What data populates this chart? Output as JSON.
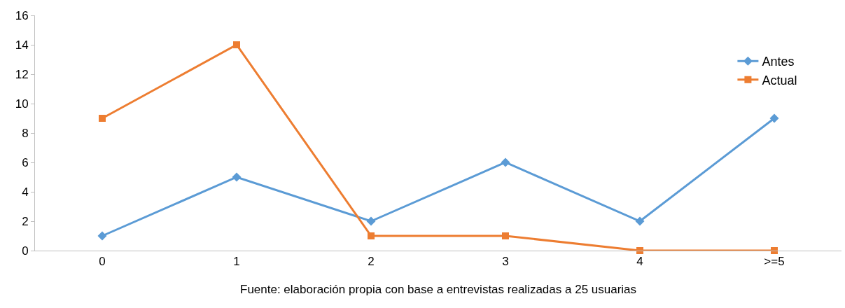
{
  "chart_data": {
    "type": "line",
    "categories": [
      "0",
      "1",
      "2",
      "3",
      "4",
      ">=5"
    ],
    "series": [
      {
        "name": "Antes",
        "color": "#5b9bd5",
        "marker": "diamond",
        "values": [
          1,
          5,
          2,
          6,
          2,
          9
        ]
      },
      {
        "name": "Actual",
        "color": "#ed7d31",
        "marker": "square",
        "values": [
          9,
          14,
          1,
          1,
          0,
          0
        ]
      }
    ],
    "ylim": [
      0,
      16
    ],
    "yticks": [
      0,
      2,
      4,
      6,
      8,
      10,
      12,
      14,
      16
    ],
    "legend": "top right",
    "line_style": "solid",
    "annotations": [
      "Fuente: elaboración propia con base a entrevistas realizadas a 25 usuarias"
    ]
  }
}
